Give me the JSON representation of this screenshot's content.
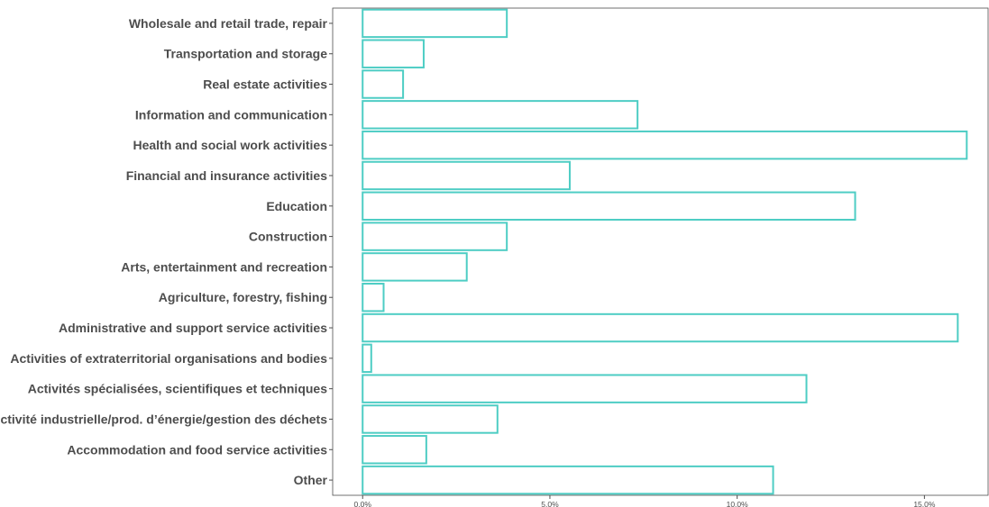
{
  "chart_data": {
    "type": "bar",
    "orientation": "horizontal",
    "categories": [
      "Wholesale and retail trade, repair",
      "Transportation and storage",
      "Real estate activities",
      "Information and communication",
      "Health and social work activities",
      "Financial and insurance activities",
      "Education",
      "Construction",
      "Arts, entertainment and recreation",
      "Agriculture, forestry, fishing",
      "Administrative and support service activities",
      "Activities of extraterritorial organisations and bodies",
      "Activités spécialisées, scientifiques et techniques",
      "Activité industrielle/prod. d’énergie/gestion des déchets",
      "Accommodation and food service activities",
      "Other"
    ],
    "values": [
      3.85,
      1.63,
      1.08,
      7.34,
      16.13,
      5.53,
      13.15,
      3.85,
      2.78,
      0.56,
      15.89,
      0.23,
      11.85,
      3.6,
      1.7,
      10.96
    ],
    "xlim": [
      -0.8,
      16.7
    ],
    "xticks": [
      0,
      5,
      10,
      15
    ],
    "xtick_labels": [
      "0.0%",
      "5.0%",
      "10.0%",
      "15.0%"
    ],
    "title": "",
    "xlabel": "",
    "ylabel": "",
    "bar_outline_color": "#4ecdc4",
    "bar_fill": "none",
    "grid": false,
    "legend": "none"
  }
}
